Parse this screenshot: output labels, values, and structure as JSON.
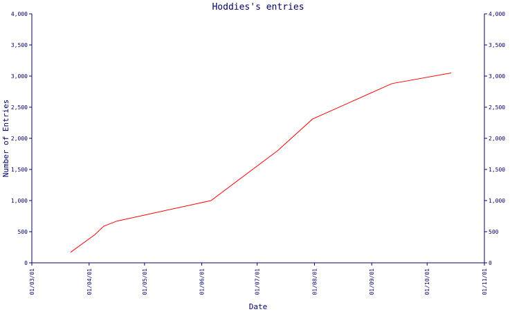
{
  "chart_data": {
    "type": "line",
    "title": "Hoddies's entries",
    "xlabel": "Date",
    "ylabel": "Number of Entries",
    "x_ticks": [
      "01/03/01",
      "01/04/01",
      "01/05/01",
      "01/06/01",
      "01/07/01",
      "01/08/01",
      "01/09/01",
      "01/10/01",
      "01/11/01"
    ],
    "y_ticks": [
      "0",
      "500",
      "1,000",
      "1,500",
      "2,000",
      "2,500",
      "3,000",
      "3,500",
      "4,000"
    ],
    "ylim": [
      0,
      4000
    ],
    "xlim": [
      "2001-03-01",
      "2001-11-01"
    ],
    "grid": false,
    "legend": "none",
    "series": [
      {
        "color": "#ff0000",
        "points": [
          {
            "x": "2001-03-22",
            "y": 170
          },
          {
            "x": "2001-04-04",
            "y": 450
          },
          {
            "x": "2001-04-09",
            "y": 590
          },
          {
            "x": "2001-04-16",
            "y": 670
          },
          {
            "x": "2001-06-06",
            "y": 1000
          },
          {
            "x": "2001-07-12",
            "y": 1800
          },
          {
            "x": "2001-07-31",
            "y": 2310
          },
          {
            "x": "2001-09-12",
            "y": 2880
          },
          {
            "x": "2001-10-14",
            "y": 3050
          }
        ]
      }
    ],
    "colors": {
      "axis": "#000066",
      "text": "#000066",
      "line": "#ff0000"
    }
  }
}
